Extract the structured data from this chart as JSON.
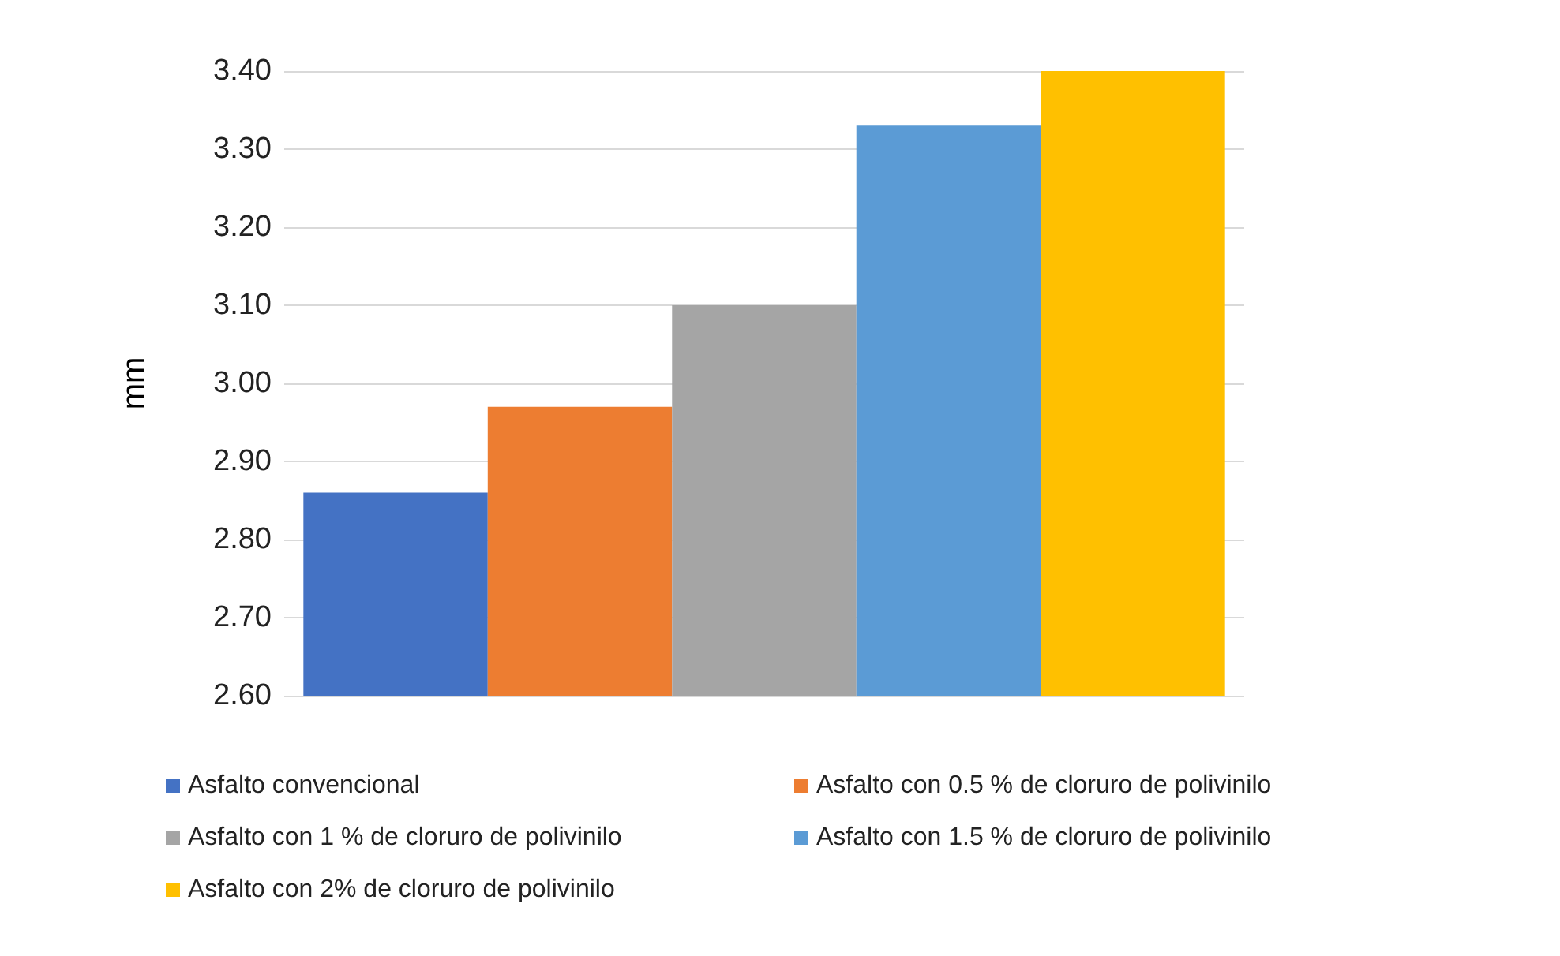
{
  "chart_data": {
    "type": "bar",
    "ylabel": "mm",
    "categories": [
      null
    ],
    "series": [
      {
        "name": "Asfalto convencional",
        "color": "#4472c4",
        "values": [
          2.86
        ]
      },
      {
        "name": "Asfalto con 0.5 % de cloruro de polivinilo",
        "color": "#ed7d31",
        "values": [
          2.97
        ]
      },
      {
        "name": "Asfalto con 1 % de cloruro de polivinilo",
        "color": "#a5a5a5",
        "values": [
          3.1
        ]
      },
      {
        "name": "Asfalto con 1.5 % de cloruro de polivinilo",
        "color": "#5b9bd5",
        "values": [
          3.33
        ]
      },
      {
        "name": "Asfalto con 2% de cloruro de polivinilo",
        "color": "#ffc000",
        "values": [
          3.4
        ]
      }
    ],
    "ylim": [
      2.6,
      3.4
    ],
    "yticks": [
      {
        "value": 2.6,
        "label": "2.60"
      },
      {
        "value": 2.7,
        "label": "2.70"
      },
      {
        "value": 2.8,
        "label": "2.80"
      },
      {
        "value": 2.9,
        "label": "2.90"
      },
      {
        "value": 3.0,
        "label": "3.00"
      },
      {
        "value": 3.1,
        "label": "3.10"
      },
      {
        "value": 3.2,
        "label": "3.20"
      },
      {
        "value": 3.3,
        "label": "3.30"
      },
      {
        "value": 3.4,
        "label": "3.40"
      }
    ],
    "grid": true,
    "legend": "bottom"
  }
}
